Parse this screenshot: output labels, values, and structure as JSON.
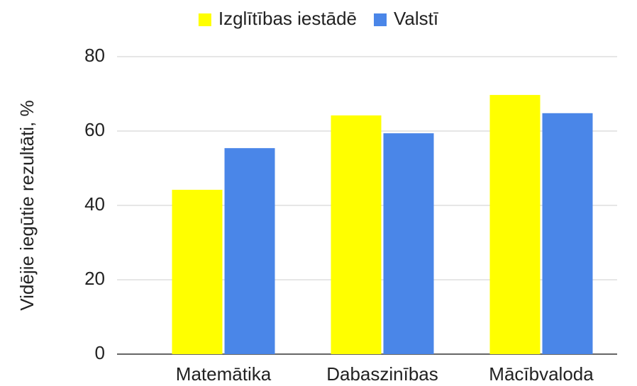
{
  "chart_data": {
    "type": "bar",
    "y_label": "Vidējie iegūtie rezultāti, %",
    "categories": [
      "Matemātika",
      "Dabaszinības",
      "Mācībvaloda"
    ],
    "series": [
      {
        "name": "Izglītības iestādē",
        "color": "#ffff00",
        "values": [
          44.2,
          64.2,
          69.7
        ]
      },
      {
        "name": "Valstī",
        "color": "#4a86e8",
        "values": [
          55.4,
          59.4,
          64.8
        ]
      }
    ],
    "ylim": [
      0,
      80
    ],
    "yticks": [
      0,
      20,
      40,
      60,
      80
    ],
    "grid": true,
    "legend": "top"
  }
}
